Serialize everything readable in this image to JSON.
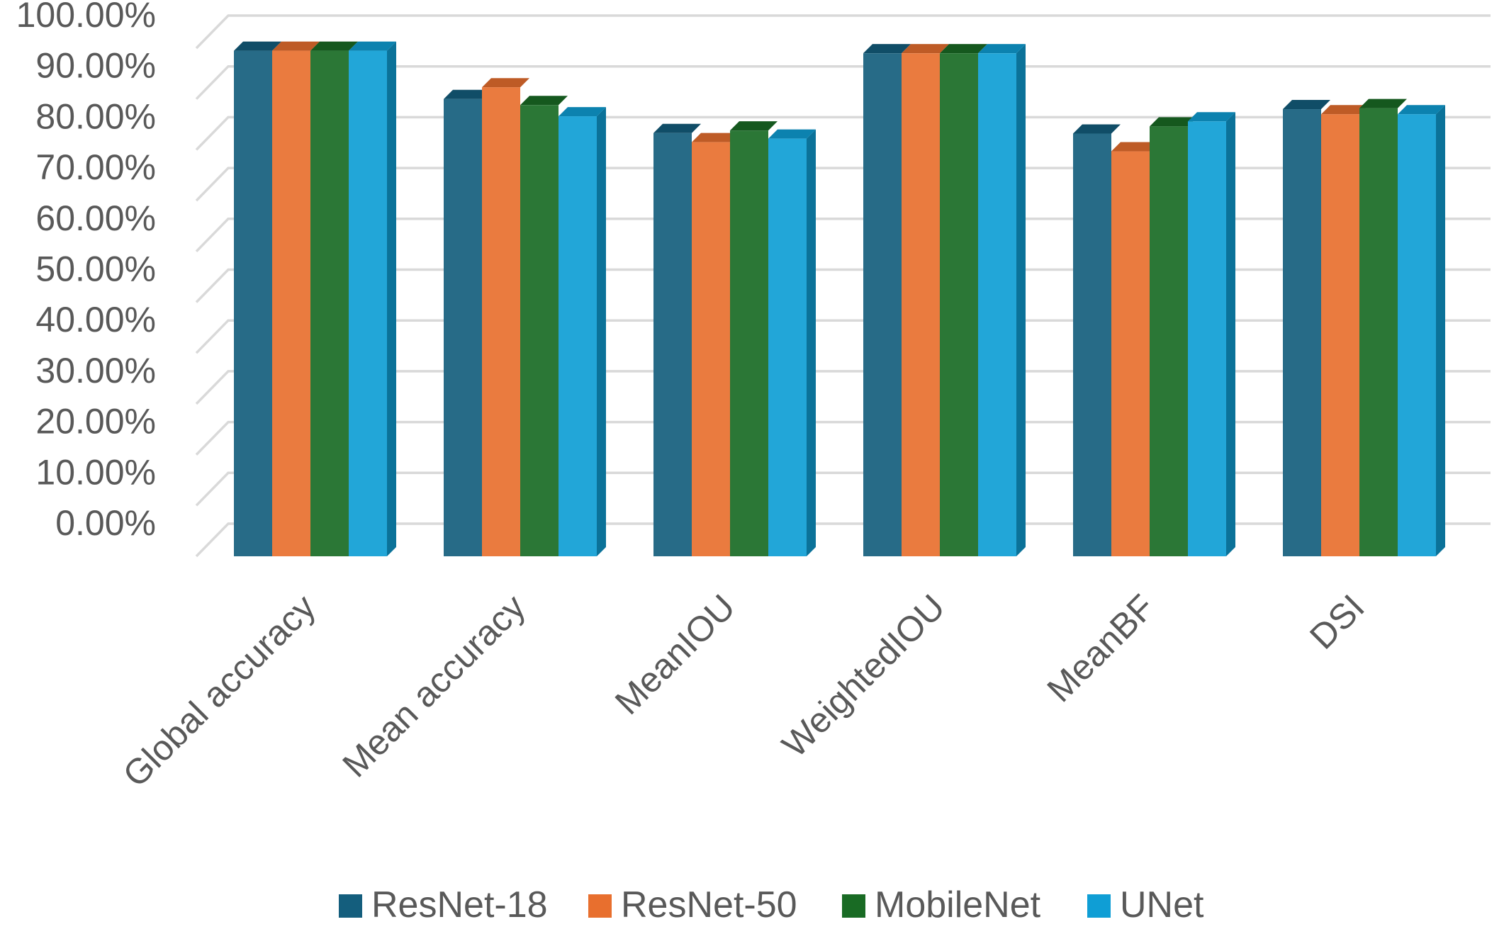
{
  "chart_data": {
    "type": "bar",
    "title": "",
    "xlabel": "",
    "ylabel": "",
    "ylim": [
      0,
      1
    ],
    "grid": true,
    "three_d": true,
    "legend_position": "bottom-center",
    "y_ticks": [
      "0.00%",
      "10.00%",
      "20.00%",
      "30.00%",
      "40.00%",
      "50.00%",
      "60.00%",
      "70.00%",
      "80.00%",
      "90.00%",
      "100.00%"
    ],
    "categories": [
      "Global accuracy",
      "Mean accuracy",
      "MeanIOU",
      "WeightedIOU",
      "MeanBF",
      "DSI"
    ],
    "series": [
      {
        "name": "ResNet-18",
        "color": "#145e7d",
        "values": [
          0.995,
          0.9,
          0.833,
          0.99,
          0.832,
          0.88
        ]
      },
      {
        "name": "ResNet-50",
        "color": "#e86f2e",
        "values": [
          0.995,
          0.923,
          0.815,
          0.99,
          0.797,
          0.87
        ]
      },
      {
        "name": "MobileNet",
        "color": "#196b24",
        "values": [
          0.995,
          0.888,
          0.838,
          0.99,
          0.846,
          0.882
        ]
      },
      {
        "name": "UNet",
        "color": "#0f9ed5",
        "values": [
          0.995,
          0.866,
          0.822,
          0.99,
          0.856,
          0.87
        ]
      }
    ]
  }
}
